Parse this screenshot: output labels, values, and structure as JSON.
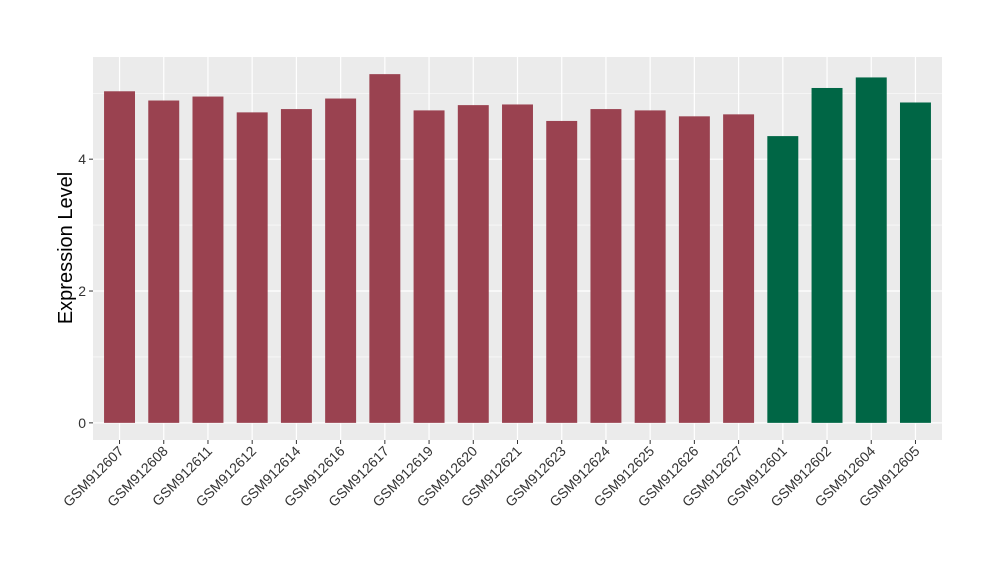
{
  "chart_data": {
    "type": "bar",
    "title": "",
    "xlabel": "",
    "ylabel": "Expression Level",
    "ylim": [
      -0.26,
      5.55
    ],
    "yticks": [
      0,
      2,
      4
    ],
    "grid": true,
    "categories": [
      "GSM912607",
      "GSM912608",
      "GSM912611",
      "GSM912612",
      "GSM912614",
      "GSM912616",
      "GSM912617",
      "GSM912619",
      "GSM912620",
      "GSM912621",
      "GSM912623",
      "GSM912624",
      "GSM912625",
      "GSM912626",
      "GSM912627",
      "GSM912601",
      "GSM912602",
      "GSM912604",
      "GSM912605"
    ],
    "values": [
      5.03,
      4.89,
      4.95,
      4.71,
      4.76,
      4.92,
      5.29,
      4.74,
      4.82,
      4.83,
      4.58,
      4.76,
      4.74,
      4.65,
      4.68,
      4.35,
      5.08,
      5.24,
      4.86
    ],
    "groups": [
      "a",
      "a",
      "a",
      "a",
      "a",
      "a",
      "a",
      "a",
      "a",
      "a",
      "a",
      "a",
      "a",
      "a",
      "a",
      "b",
      "b",
      "b",
      "b"
    ],
    "colors": {
      "a": "#9A4250",
      "b": "#006645"
    }
  }
}
